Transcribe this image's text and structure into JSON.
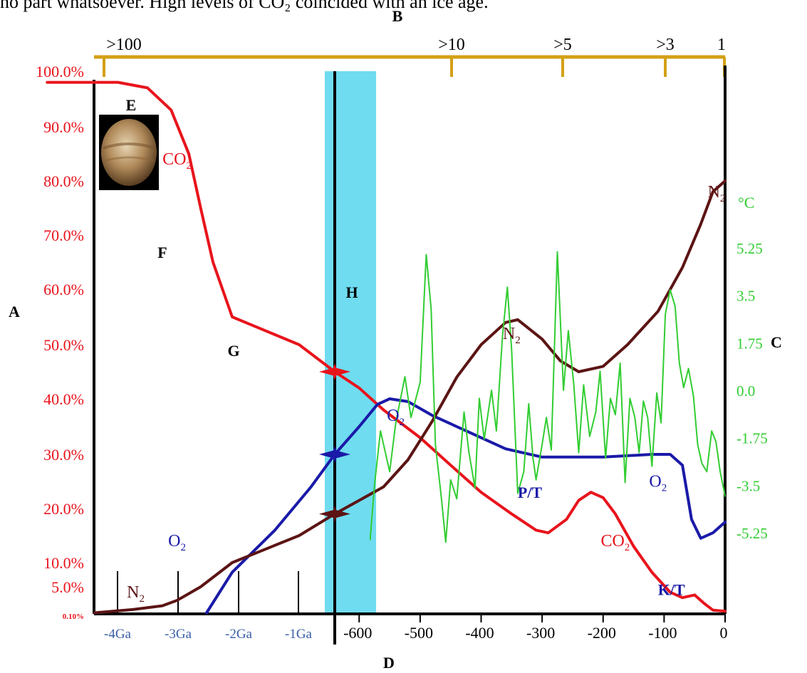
{
  "caption_fragment": "no part whatsoever. High levels of CO₂ coincided with an ice age.",
  "chart_data": {
    "type": "line",
    "letters": {
      "A": "A",
      "B": "B",
      "C": "C",
      "D": "D",
      "E": "E",
      "F": "F",
      "G": "G",
      "H": "H"
    },
    "top_axis": {
      "labels": [
        ">100",
        ">10",
        ">5",
        ">3",
        "1"
      ],
      "positions": [
        -1230,
        -470,
        -270,
        -110,
        0
      ],
      "color": "#d4a017"
    },
    "left_axis": {
      "labels": [
        "100.0%",
        "90.0%",
        "80.0%",
        "70.0%",
        "60.0%",
        "50.0%",
        "40.0%",
        "30.0%",
        "20.0%",
        "10.0%",
        "5.0%",
        "0.10%"
      ],
      "values": [
        100,
        90,
        80,
        70,
        60,
        50,
        40,
        30,
        20,
        10,
        5,
        0.1
      ],
      "color": "#e8141c"
    },
    "right_axis": {
      "unit": "°C",
      "labels": [
        "5.25",
        "3.5",
        "1.75",
        "0.0",
        "-1.75",
        "-3.5",
        "-5.25"
      ],
      "values": [
        5.25,
        3.5,
        1.75,
        0.0,
        -1.75,
        -3.5,
        -5.25
      ],
      "color": "#32cd32"
    },
    "bottom_axis": {
      "ga_labels": [
        "-4Ga",
        "-3Ga",
        "-2Ga",
        "-1Ga"
      ],
      "ga_color": "#3a5fa8",
      "my_labels": [
        "-600",
        "-500",
        "-400",
        "-300",
        "-200",
        "-100",
        "0"
      ],
      "my_values": [
        -600,
        -500,
        -400,
        -300,
        -200,
        -100,
        0
      ]
    },
    "highlight_band": {
      "x_range": [
        -660,
        -580
      ],
      "color": "#6fdcf0"
    },
    "marker_line_x": -640,
    "series": [
      {
        "key": "co2",
        "color": "#e8141c",
        "points": [
          [
            -1340,
            98
          ],
          [
            -1100,
            98
          ],
          [
            -1000,
            97
          ],
          [
            -920,
            93
          ],
          [
            -860,
            85
          ],
          [
            -820,
            75
          ],
          [
            -790,
            65
          ],
          [
            -760,
            55
          ],
          [
            -700,
            50
          ],
          [
            -640,
            45
          ],
          [
            -600,
            42
          ],
          [
            -560,
            38
          ],
          [
            -500,
            33
          ],
          [
            -450,
            28
          ],
          [
            -400,
            23
          ],
          [
            -350,
            19
          ],
          [
            -310,
            16
          ],
          [
            -290,
            15.5
          ],
          [
            -260,
            18
          ],
          [
            -240,
            21.5
          ],
          [
            -220,
            23
          ],
          [
            -200,
            22
          ],
          [
            -180,
            19
          ],
          [
            -150,
            13
          ],
          [
            -120,
            8
          ],
          [
            -90,
            4
          ],
          [
            -70,
            3
          ],
          [
            -50,
            3.5
          ],
          [
            -35,
            2
          ],
          [
            -20,
            0.7
          ],
          [
            0,
            0.5
          ]
        ]
      },
      {
        "key": "o2",
        "color": "#1a1aa8",
        "points": [
          [
            -800,
            0.2
          ],
          [
            -760,
            8
          ],
          [
            -720,
            16
          ],
          [
            -680,
            24
          ],
          [
            -640,
            30
          ],
          [
            -600,
            35
          ],
          [
            -570,
            39
          ],
          [
            -550,
            40
          ],
          [
            -520,
            39.5
          ],
          [
            -480,
            37
          ],
          [
            -420,
            34
          ],
          [
            -360,
            31
          ],
          [
            -300,
            29.5
          ],
          [
            -200,
            29.5
          ],
          [
            -120,
            30
          ],
          [
            -90,
            30
          ],
          [
            -70,
            28
          ],
          [
            -55,
            18
          ],
          [
            -40,
            14.5
          ],
          [
            -20,
            15.5
          ],
          [
            0,
            17.5
          ]
        ]
      },
      {
        "key": "n2",
        "color": "#5c1414",
        "points": [
          [
            -1180,
            0.2
          ],
          [
            -1050,
            0.8
          ],
          [
            -950,
            1.5
          ],
          [
            -900,
            2.5
          ],
          [
            -820,
            5
          ],
          [
            -760,
            10
          ],
          [
            -700,
            15
          ],
          [
            -640,
            19
          ],
          [
            -600,
            21.5
          ],
          [
            -560,
            24
          ],
          [
            -520,
            29
          ],
          [
            -480,
            36
          ],
          [
            -440,
            44
          ],
          [
            -400,
            50
          ],
          [
            -360,
            54
          ],
          [
            -340,
            54.5
          ],
          [
            -300,
            51
          ],
          [
            -270,
            47
          ],
          [
            -240,
            45
          ],
          [
            -200,
            46
          ],
          [
            -160,
            50
          ],
          [
            -110,
            56
          ],
          [
            -70,
            64
          ],
          [
            -40,
            72
          ],
          [
            -20,
            78
          ],
          [
            0,
            80
          ]
        ]
      },
      {
        "key": "temperature",
        "color": "#32cd32",
        "points": [
          [
            -582,
            -5.5
          ],
          [
            -575,
            -3.5
          ],
          [
            -565,
            -1.5
          ],
          [
            -550,
            -3.0
          ],
          [
            -540,
            -1.2
          ],
          [
            -525,
            0.5
          ],
          [
            -515,
            -1.0
          ],
          [
            -500,
            0.3
          ],
          [
            -490,
            5.0
          ],
          [
            -482,
            3.0
          ],
          [
            -475,
            -2.0
          ],
          [
            -465,
            -4.0
          ],
          [
            -458,
            -5.6
          ],
          [
            -450,
            -3.3
          ],
          [
            -440,
            -4.0
          ],
          [
            -428,
            -0.8
          ],
          [
            -420,
            -2.3
          ],
          [
            -410,
            -3.6
          ],
          [
            -403,
            -0.3
          ],
          [
            -395,
            -1.8
          ],
          [
            -383,
            0.0
          ],
          [
            -375,
            -1.5
          ],
          [
            -365,
            2.0
          ],
          [
            -357,
            3.8
          ],
          [
            -350,
            1.5
          ],
          [
            -340,
            -3.8
          ],
          [
            -330,
            -3.0
          ],
          [
            -322,
            -0.5
          ],
          [
            -315,
            -2.5
          ],
          [
            -310,
            -3.3
          ],
          [
            -300,
            -2.0
          ],
          [
            -293,
            -1.0
          ],
          [
            -285,
            -2.2
          ],
          [
            -275,
            5.1
          ],
          [
            -265,
            0.0
          ],
          [
            -257,
            2.2
          ],
          [
            -248,
            0.2
          ],
          [
            -240,
            -2.3
          ],
          [
            -232,
            0.2
          ],
          [
            -222,
            -1.7
          ],
          [
            -212,
            -0.8
          ],
          [
            -205,
            0.7
          ],
          [
            -196,
            -2.5
          ],
          [
            -188,
            -0.3
          ],
          [
            -180,
            -0.9
          ],
          [
            -172,
            1.0
          ],
          [
            -164,
            -3.4
          ],
          [
            -156,
            -0.3
          ],
          [
            -148,
            -1.0
          ],
          [
            -141,
            -2.3
          ],
          [
            -134,
            -0.4
          ],
          [
            -127,
            -1.0
          ],
          [
            -120,
            -2.8
          ],
          [
            -112,
            -0.1
          ],
          [
            -105,
            -1.2
          ],
          [
            -98,
            2.8
          ],
          [
            -90,
            3.7
          ],
          [
            -82,
            3.1
          ],
          [
            -75,
            1.0
          ],
          [
            -68,
            0.1
          ],
          [
            -60,
            0.8
          ],
          [
            -52,
            -0.2
          ],
          [
            -45,
            -2.0
          ],
          [
            -38,
            -2.7
          ],
          [
            -30,
            -3.0
          ],
          [
            -22,
            -1.5
          ],
          [
            -15,
            -1.9
          ],
          [
            -8,
            -3.0
          ],
          [
            0,
            -3.9
          ]
        ]
      }
    ],
    "curve_labels": [
      {
        "text": "CO",
        "sub": "2",
        "color": "#e8141c",
        "at": [
          -900,
          83
        ]
      },
      {
        "text": "N",
        "sub": "2",
        "color": "#5c1414",
        "at": [
          -350,
          51
        ]
      },
      {
        "text": "N",
        "sub": "2",
        "color": "#5c1414",
        "at": [
          -14,
          77
        ]
      },
      {
        "text": "O",
        "sub": "2",
        "color": "#1a1aa8",
        "at": [
          -540,
          36
        ]
      },
      {
        "text": "O",
        "sub": "2",
        "color": "#1a1aa8",
        "at": [
          -110,
          24
        ]
      },
      {
        "text": "O",
        "sub": "2",
        "color": "#1a1aa8",
        "at": [
          -900,
          13
        ]
      },
      {
        "text": "N",
        "sub": "2",
        "color": "#5c1414",
        "at": [
          -1040,
          3
        ]
      },
      {
        "text": "CO",
        "sub": "2",
        "color": "#e8141c",
        "at": [
          -180,
          13
        ]
      }
    ],
    "event_labels": [
      {
        "text": "P/T",
        "color": "#1a1aa8",
        "at": [
          -320,
          22
        ]
      },
      {
        "text": "K/T",
        "color": "#1a1aa8",
        "at": [
          -88,
          3.5
        ]
      }
    ],
    "intersection_markers": [
      {
        "at": [
          -640,
          45
        ],
        "color": "#e8141c"
      },
      {
        "at": [
          -640,
          30
        ],
        "color": "#1a1aa8"
      },
      {
        "at": [
          -640,
          19
        ],
        "color": "#5c1414"
      }
    ],
    "grid": false
  }
}
